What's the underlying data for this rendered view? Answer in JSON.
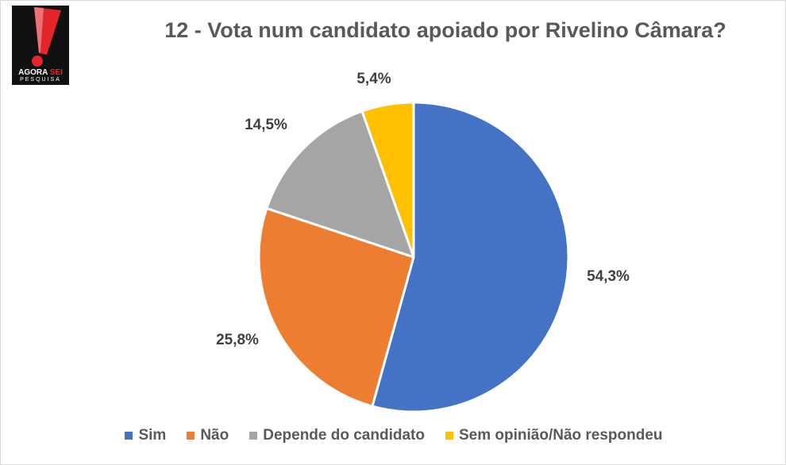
{
  "logo": {
    "line1_a": "AGORA ",
    "line1_b": "SEI",
    "line2": "PESQUISA"
  },
  "chart_data": {
    "type": "pie",
    "title": "12 - Vota num candidato apoiado por Rivelino Câmara?",
    "categories": [
      "Sim",
      "Não",
      "Depende do candidato",
      "Sem opinião/Não respondeu"
    ],
    "values": [
      54.3,
      25.8,
      14.5,
      5.4
    ],
    "data_labels": [
      "54,3%",
      "25,8%",
      "14,5%",
      "5,4%"
    ],
    "colors": [
      "#4472C4",
      "#ED7D31",
      "#A5A5A5",
      "#FFC000"
    ],
    "legend_position": "bottom"
  }
}
